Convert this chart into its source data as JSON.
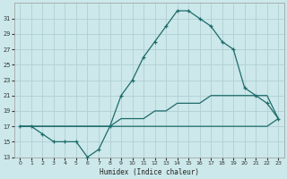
{
  "xlabel": "Humidex (Indice chaleur)",
  "bg_color": "#cce8ea",
  "grid_color": "#b0d0d4",
  "line_color": "#1e6b6b",
  "ylim": [
    13,
    33
  ],
  "xlim": [
    -0.5,
    23.5
  ],
  "yticks": [
    13,
    15,
    17,
    19,
    21,
    23,
    25,
    27,
    29,
    31
  ],
  "xticks": [
    0,
    1,
    2,
    3,
    4,
    5,
    6,
    7,
    8,
    9,
    10,
    11,
    12,
    13,
    14,
    15,
    16,
    17,
    18,
    19,
    20,
    21,
    22,
    23
  ],
  "series1_x": [
    0,
    1,
    2,
    3,
    4,
    5,
    6,
    7,
    8,
    9,
    10,
    11,
    12,
    13,
    14,
    15,
    16,
    17,
    18,
    19,
    20,
    21,
    22,
    23
  ],
  "series1_y": [
    17,
    17,
    16,
    15,
    15,
    15,
    13,
    14,
    17,
    21,
    23,
    26,
    28,
    30,
    32,
    32,
    31,
    30,
    28,
    27,
    22,
    21,
    20,
    18
  ],
  "series2_x": [
    0,
    1,
    2,
    3,
    4,
    5,
    6,
    7,
    8,
    9,
    10,
    11,
    12,
    13,
    14,
    15,
    16,
    17,
    18,
    19,
    20,
    21,
    22,
    23
  ],
  "series2_y": [
    17,
    17,
    17,
    17,
    17,
    17,
    17,
    17,
    17,
    18,
    18,
    18,
    19,
    19,
    20,
    20,
    20,
    21,
    21,
    21,
    21,
    21,
    21,
    18
  ],
  "series3_x": [
    0,
    1,
    2,
    3,
    4,
    5,
    6,
    7,
    8,
    9,
    10,
    11,
    12,
    13,
    14,
    15,
    16,
    17,
    18,
    19,
    20,
    21,
    22,
    23
  ],
  "series3_y": [
    17,
    17,
    17,
    17,
    17,
    17,
    17,
    17,
    17,
    17,
    17,
    17,
    17,
    17,
    17,
    17,
    17,
    17,
    17,
    17,
    17,
    17,
    17,
    18
  ]
}
